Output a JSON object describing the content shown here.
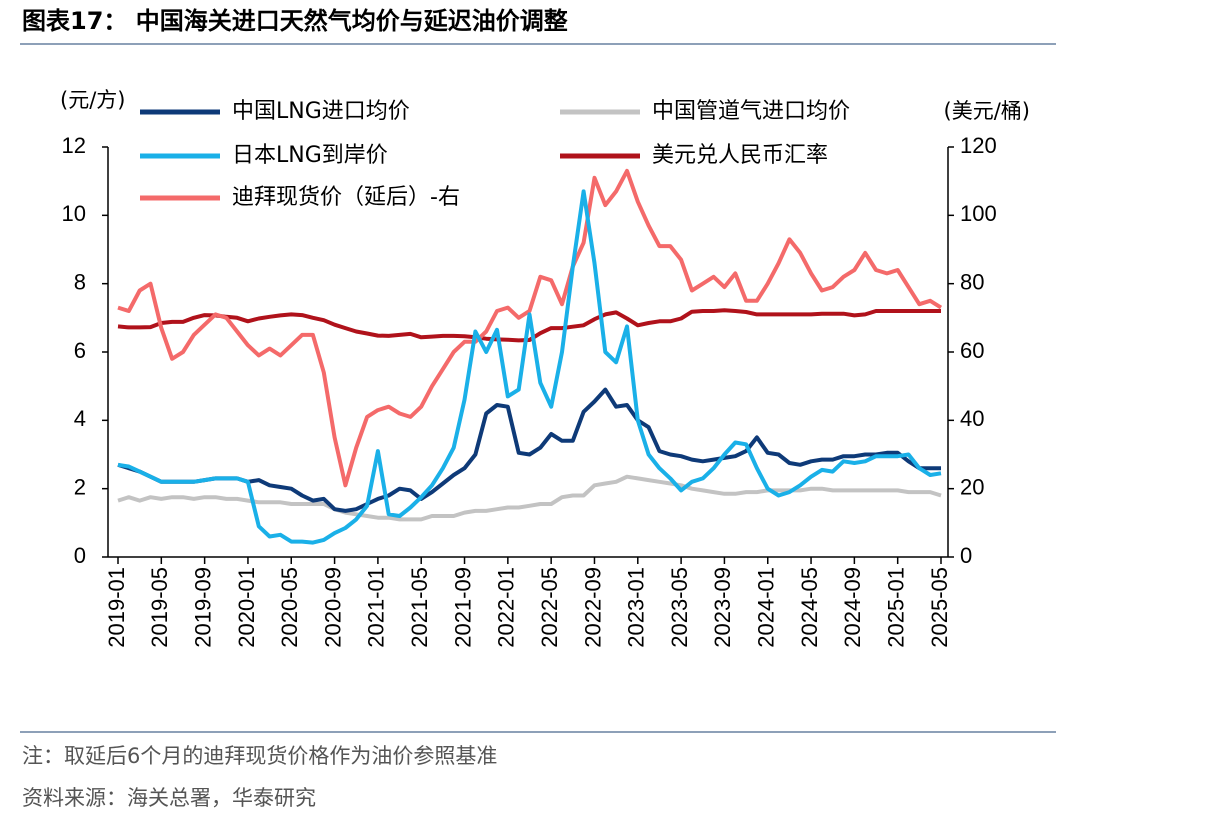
{
  "chart_data": {
    "type": "line",
    "title": "图表17：  中国海关进口天然气均价与延迟油价调整",
    "y_label": "(元/方)",
    "y2_label": "(美元/桶)",
    "note": "注：取延后6个月的迪拜现货价格作为油价参照基准",
    "source": "资料来源：海关总署，华泰研究",
    "categories": [
      "2019-01",
      null,
      null,
      null,
      "2019-05",
      null,
      null,
      null,
      "2019-09",
      null,
      null,
      null,
      "2020-01",
      null,
      null,
      null,
      "2020-05",
      null,
      null,
      null,
      "2020-09",
      null,
      null,
      null,
      "2021-01",
      null,
      null,
      null,
      "2021-05",
      null,
      null,
      null,
      "2021-09",
      null,
      null,
      null,
      "2022-01",
      null,
      null,
      null,
      "2022-05",
      null,
      null,
      null,
      "2022-09",
      null,
      null,
      null,
      "2023-01",
      null,
      null,
      null,
      "2023-05",
      null,
      null,
      null,
      "2023-09",
      null,
      null,
      null,
      "2024-01",
      null,
      null,
      null,
      "2024-05",
      null,
      null,
      null,
      "2024-09",
      null,
      null,
      null,
      "2025-01",
      null,
      null,
      null,
      "2025-05"
    ],
    "ylim": [
      0,
      12
    ],
    "yticks": [
      0,
      2,
      4,
      6,
      8,
      10,
      12
    ],
    "y2lim": [
      0,
      120
    ],
    "y2ticks": [
      0,
      20,
      40,
      60,
      80,
      100,
      120
    ],
    "series": [
      {
        "name": "中国管道气进口均价",
        "color": "#c3c3c3",
        "values": [
          1.65,
          1.75,
          1.65,
          1.75,
          1.7,
          1.75,
          1.75,
          1.7,
          1.75,
          1.75,
          1.7,
          1.7,
          1.65,
          1.6,
          1.6,
          1.6,
          1.55,
          1.55,
          1.55,
          1.55,
          1.4,
          1.3,
          1.25,
          1.2,
          1.15,
          1.15,
          1.1,
          1.1,
          1.1,
          1.2,
          1.2,
          1.2,
          1.3,
          1.35,
          1.35,
          1.4,
          1.45,
          1.45,
          1.5,
          1.55,
          1.55,
          1.75,
          1.8,
          1.8,
          2.1,
          2.15,
          2.2,
          2.35,
          2.3,
          2.25,
          2.2,
          2.15,
          2.1,
          2.0,
          1.95,
          1.9,
          1.85,
          1.85,
          1.9,
          1.9,
          1.95,
          1.95,
          1.95,
          1.95,
          2.0,
          2.0,
          1.95,
          1.95,
          1.95,
          1.95,
          1.95,
          1.95,
          1.95,
          1.9,
          1.9,
          1.9,
          1.8
        ]
      },
      {
        "name": "美元兑人民币汇率",
        "color": "#b0121b",
        "values": [
          6.75,
          6.72,
          6.72,
          6.73,
          6.85,
          6.88,
          6.88,
          7.0,
          7.08,
          7.07,
          7.03,
          7.0,
          6.9,
          6.98,
          7.03,
          7.07,
          7.1,
          7.08,
          7.0,
          6.93,
          6.8,
          6.7,
          6.6,
          6.54,
          6.48,
          6.47,
          6.5,
          6.53,
          6.43,
          6.45,
          6.47,
          6.47,
          6.46,
          6.43,
          6.39,
          6.37,
          6.36,
          6.34,
          6.35,
          6.55,
          6.7,
          6.7,
          6.74,
          6.78,
          6.96,
          7.1,
          7.16,
          6.98,
          6.78,
          6.85,
          6.9,
          6.9,
          6.98,
          7.18,
          7.2,
          7.2,
          7.22,
          7.2,
          7.17,
          7.1,
          7.1,
          7.1,
          7.1,
          7.1,
          7.1,
          7.12,
          7.12,
          7.12,
          7.07,
          7.1,
          7.2,
          7.2,
          7.2,
          7.2,
          7.2,
          7.2,
          7.2
        ]
      },
      {
        "name": "迪拜现货价（延后）-右",
        "color": "#f46a6a",
        "axis": "y2",
        "values": [
          73,
          72,
          78,
          80,
          67,
          58,
          60,
          65,
          68,
          71,
          70,
          66,
          62,
          59,
          61,
          59,
          62,
          65,
          65,
          54,
          35,
          21,
          32,
          41,
          43,
          44,
          42,
          41,
          44,
          50,
          55,
          60,
          63,
          63,
          66,
          72,
          73,
          70,
          72,
          82,
          81,
          74,
          85,
          92,
          111,
          103,
          107,
          113,
          104,
          97,
          91,
          91,
          87,
          78,
          80,
          82,
          79,
          83,
          75,
          75,
          80,
          86,
          93,
          89,
          83,
          78,
          79,
          82,
          84,
          89,
          84,
          83,
          84,
          79,
          74,
          75,
          73
        ]
      },
      {
        "name": "中国LNG进口均价",
        "color": "#0e3a78",
        "values": [
          2.7,
          2.6,
          2.5,
          2.35,
          2.2,
          2.2,
          2.2,
          2.2,
          2.25,
          2.3,
          2.3,
          2.3,
          2.2,
          2.25,
          2.1,
          2.05,
          2.0,
          1.8,
          1.65,
          1.7,
          1.4,
          1.35,
          1.4,
          1.55,
          1.7,
          1.8,
          2.0,
          1.95,
          1.7,
          1.9,
          2.15,
          2.4,
          2.6,
          3.0,
          4.2,
          4.45,
          4.4,
          3.05,
          3.0,
          3.2,
          3.6,
          3.4,
          3.4,
          4.25,
          4.55,
          4.9,
          4.4,
          4.45,
          4.0,
          3.8,
          3.1,
          3.0,
          2.95,
          2.85,
          2.8,
          2.85,
          2.9,
          2.95,
          3.1,
          3.5,
          3.05,
          3.0,
          2.75,
          2.7,
          2.8,
          2.85,
          2.85,
          2.95,
          2.95,
          3.0,
          3.0,
          3.05,
          3.05,
          2.8,
          2.6,
          2.6,
          2.6
        ]
      },
      {
        "name": "日本LNG到岸价",
        "color": "#1ab0e8",
        "values": [
          2.7,
          2.65,
          2.5,
          2.35,
          2.2,
          2.2,
          2.2,
          2.2,
          2.25,
          2.3,
          2.3,
          2.3,
          2.2,
          0.9,
          0.6,
          0.65,
          0.45,
          0.45,
          0.42,
          0.5,
          0.7,
          0.85,
          1.1,
          1.5,
          3.1,
          1.25,
          1.2,
          1.45,
          1.75,
          2.1,
          2.6,
          3.2,
          4.6,
          6.6,
          6.0,
          6.65,
          4.7,
          4.9,
          7.1,
          5.1,
          4.4,
          6.0,
          8.5,
          10.7,
          8.6,
          6.0,
          5.7,
          6.75,
          4.0,
          3.0,
          2.6,
          2.3,
          1.95,
          2.2,
          2.3,
          2.6,
          3.0,
          3.35,
          3.3,
          2.6,
          2.0,
          1.8,
          1.9,
          2.1,
          2.35,
          2.55,
          2.5,
          2.8,
          2.75,
          2.8,
          2.95,
          2.95,
          2.95,
          3.0,
          2.6,
          2.4,
          2.45
        ]
      }
    ]
  }
}
